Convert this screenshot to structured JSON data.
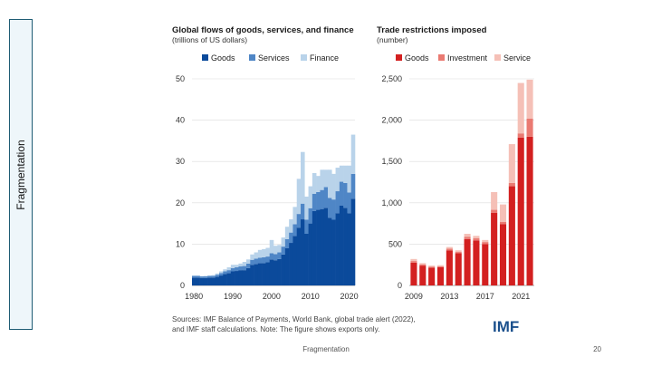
{
  "side_label": "Fragmentation",
  "footer": "Fragmentation",
  "page_number": "20",
  "source_note_1": "Sources: IMF Balance of Payments, World Bank, global trade alert (2022),",
  "source_note_2": "and IMF staff calculations. Note: The figure shows exports only.",
  "logo_text": "IMF",
  "colors": {
    "goods": "#0b4a9b",
    "services": "#4f86c6",
    "finance": "#b9d3ea",
    "r_goods": "#d32020",
    "r_investment": "#ea7a72",
    "r_service": "#f5c0b7",
    "logo": "#1a4f8c"
  },
  "chart_data": [
    {
      "type": "area",
      "title": "Global flows of goods, services, and finance",
      "subtitle": "(trillions of US dollars)",
      "legend": [
        "Goods",
        "Services",
        "Finance"
      ],
      "legend_position": "top-right",
      "ylim": [
        0,
        50
      ],
      "yticks": [
        "0",
        "10",
        "20",
        "30",
        "40",
        "50"
      ],
      "xticks": [
        "1980",
        "1990",
        "2000",
        "2010",
        "2020"
      ],
      "x": [
        1980,
        1981,
        1982,
        1983,
        1984,
        1985,
        1986,
        1987,
        1988,
        1989,
        1990,
        1991,
        1992,
        1993,
        1994,
        1995,
        1996,
        1997,
        1998,
        1999,
        2000,
        2001,
        2002,
        2003,
        2004,
        2005,
        2006,
        2007,
        2008,
        2009,
        2010,
        2011,
        2012,
        2013,
        2014,
        2015,
        2016,
        2017,
        2018,
        2019,
        2020,
        2021
      ],
      "series": [
        {
          "name": "Goods",
          "values": [
            1.9,
            1.9,
            1.8,
            1.8,
            1.9,
            1.9,
            2.1,
            2.4,
            2.8,
            3.0,
            3.4,
            3.5,
            3.7,
            3.7,
            4.2,
            5.0,
            5.2,
            5.4,
            5.4,
            5.6,
            6.3,
            6.1,
            6.4,
            7.5,
            9.0,
            10.3,
            12.0,
            14.0,
            16.0,
            12.5,
            15.0,
            18.0,
            18.3,
            18.5,
            18.8,
            16.4,
            15.9,
            17.5,
            19.3,
            18.8,
            17.5,
            21.0
          ]
        },
        {
          "name": "Services",
          "values": [
            0.4,
            0.4,
            0.4,
            0.4,
            0.4,
            0.4,
            0.5,
            0.6,
            0.6,
            0.7,
            0.8,
            0.9,
            0.9,
            1.0,
            1.1,
            1.2,
            1.3,
            1.3,
            1.4,
            1.4,
            1.5,
            1.5,
            1.6,
            1.9,
            2.2,
            2.5,
            2.8,
            3.3,
            3.8,
            3.4,
            3.7,
            4.2,
            4.3,
            4.6,
            5.0,
            4.8,
            4.9,
            5.3,
            5.8,
            6.0,
            5.0,
            6.0
          ]
        },
        {
          "name": "Finance",
          "values": [
            0.1,
            0.1,
            0.0,
            0.1,
            0.1,
            0.2,
            0.3,
            0.4,
            0.5,
            0.7,
            0.8,
            0.6,
            0.7,
            1.0,
            1.0,
            1.3,
            1.5,
            1.9,
            2.0,
            2.1,
            3.2,
            2.0,
            1.8,
            2.2,
            3.0,
            3.2,
            4.2,
            8.5,
            12.5,
            5.6,
            5.3,
            5.0,
            3.9,
            4.9,
            4.2,
            6.8,
            6.2,
            5.7,
            3.9,
            4.2,
            6.5,
            9.5
          ]
        }
      ]
    },
    {
      "type": "bar",
      "title": "Trade restrictions imposed",
      "subtitle": "(number)",
      "legend": [
        "Goods",
        "Investment",
        "Service"
      ],
      "legend_position": "top-right",
      "ylim": [
        0,
        2500
      ],
      "yticks": [
        "0",
        "500",
        "1,000",
        "1,500",
        "2,000",
        "2,500"
      ],
      "xticks": [
        "2009",
        "2013",
        "2017",
        "2021"
      ],
      "categories": [
        "2009",
        "2010",
        "2011",
        "2012",
        "2013",
        "2014",
        "2015",
        "2016",
        "2017",
        "2018",
        "2019",
        "2020",
        "2021",
        "2022"
      ],
      "series": [
        {
          "name": "Goods",
          "values": [
            275,
            240,
            215,
            220,
            425,
            390,
            560,
            545,
            500,
            880,
            740,
            1200,
            1790,
            1800
          ]
        },
        {
          "name": "Investment",
          "values": [
            20,
            15,
            12,
            12,
            20,
            15,
            30,
            25,
            25,
            35,
            30,
            40,
            50,
            220
          ]
        },
        {
          "name": "Service",
          "values": [
            25,
            15,
            13,
            13,
            20,
            20,
            35,
            30,
            25,
            215,
            210,
            470,
            610,
            470
          ]
        }
      ]
    }
  ]
}
